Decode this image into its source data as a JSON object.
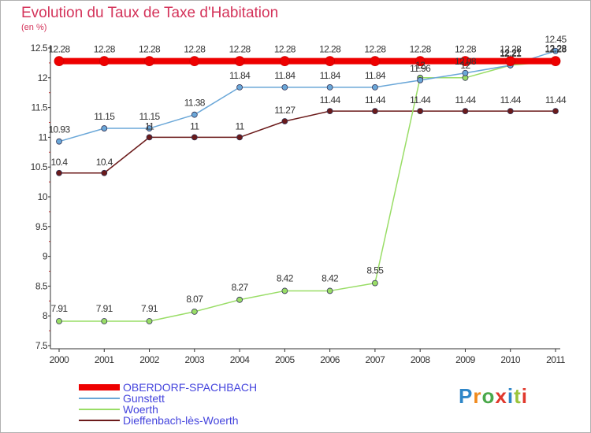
{
  "chart_data": {
    "type": "line",
    "title": "Evolution du Taux de Taxe d'Habitation",
    "subtitle": "(en %)",
    "xlabel": "",
    "ylabel": "",
    "x": [
      "2000",
      "2001",
      "2002",
      "2003",
      "2004",
      "2005",
      "2006",
      "2007",
      "2008",
      "2009",
      "2010",
      "2011"
    ],
    "ylim": [
      7.5,
      12.5
    ],
    "yticks": [
      "7.5",
      "8",
      "8.5",
      "9",
      "9.5",
      "10",
      "10.5",
      "11",
      "11.5",
      "12",
      "12.5"
    ],
    "grid": false,
    "legend_position": "bottom-left",
    "series": [
      {
        "name": "OBERDORF-SPACHBACH",
        "color": "#ee0000",
        "values": [
          12.28,
          12.28,
          12.28,
          12.28,
          12.28,
          12.28,
          12.28,
          12.28,
          12.28,
          12.28,
          12.28,
          12.28
        ],
        "labels": [
          "12.28",
          "12.28",
          "12.28",
          "12.28",
          "12.28",
          "12.28",
          "12.28",
          "12.28",
          "12.28",
          "12.28",
          "12.28",
          "12.28"
        ]
      },
      {
        "name": "Gunstett",
        "color": "#6aa7d8",
        "values": [
          10.93,
          11.15,
          11.15,
          11.38,
          11.84,
          11.84,
          11.84,
          11.84,
          11.96,
          12.08,
          12.21,
          12.45
        ],
        "labels": [
          "10.93",
          "11.15",
          "11.15",
          "11.38",
          "11.84",
          "11.84",
          "11.84",
          "11.84",
          "11.96",
          "12.08",
          "12.21",
          "12.45"
        ]
      },
      {
        "name": "Woerth",
        "color": "#99dd66",
        "values": [
          7.91,
          7.91,
          7.91,
          8.07,
          8.27,
          8.42,
          8.42,
          8.55,
          12,
          12,
          12.21,
          12.28
        ],
        "labels": [
          "7.91",
          "7.91",
          "7.91",
          "8.07",
          "8.27",
          "8.42",
          "8.42",
          "8.55",
          "12",
          "12",
          "12.21",
          "12.28"
        ]
      },
      {
        "name": "Dieffenbach-lès-Woerth",
        "color": "#6b1a1a",
        "values": [
          10.4,
          10.4,
          11,
          11,
          11,
          11.27,
          11.44,
          11.44,
          11.44,
          11.44,
          11.44,
          11.44
        ],
        "labels": [
          "10.4",
          "10.4",
          "11",
          "11",
          "11",
          "11.27",
          "11.44",
          "11.44",
          "11.44",
          "11.44",
          "11.44",
          "11.44"
        ]
      }
    ]
  },
  "logo": {
    "letters": [
      "P",
      "r",
      "o",
      "x",
      "i",
      "t",
      "i"
    ],
    "colors": [
      "#2e86c8",
      "#f08a1c",
      "#4aa84a",
      "#e0382c",
      "#2e86c8",
      "#9bc43a",
      "#e0382c"
    ]
  }
}
